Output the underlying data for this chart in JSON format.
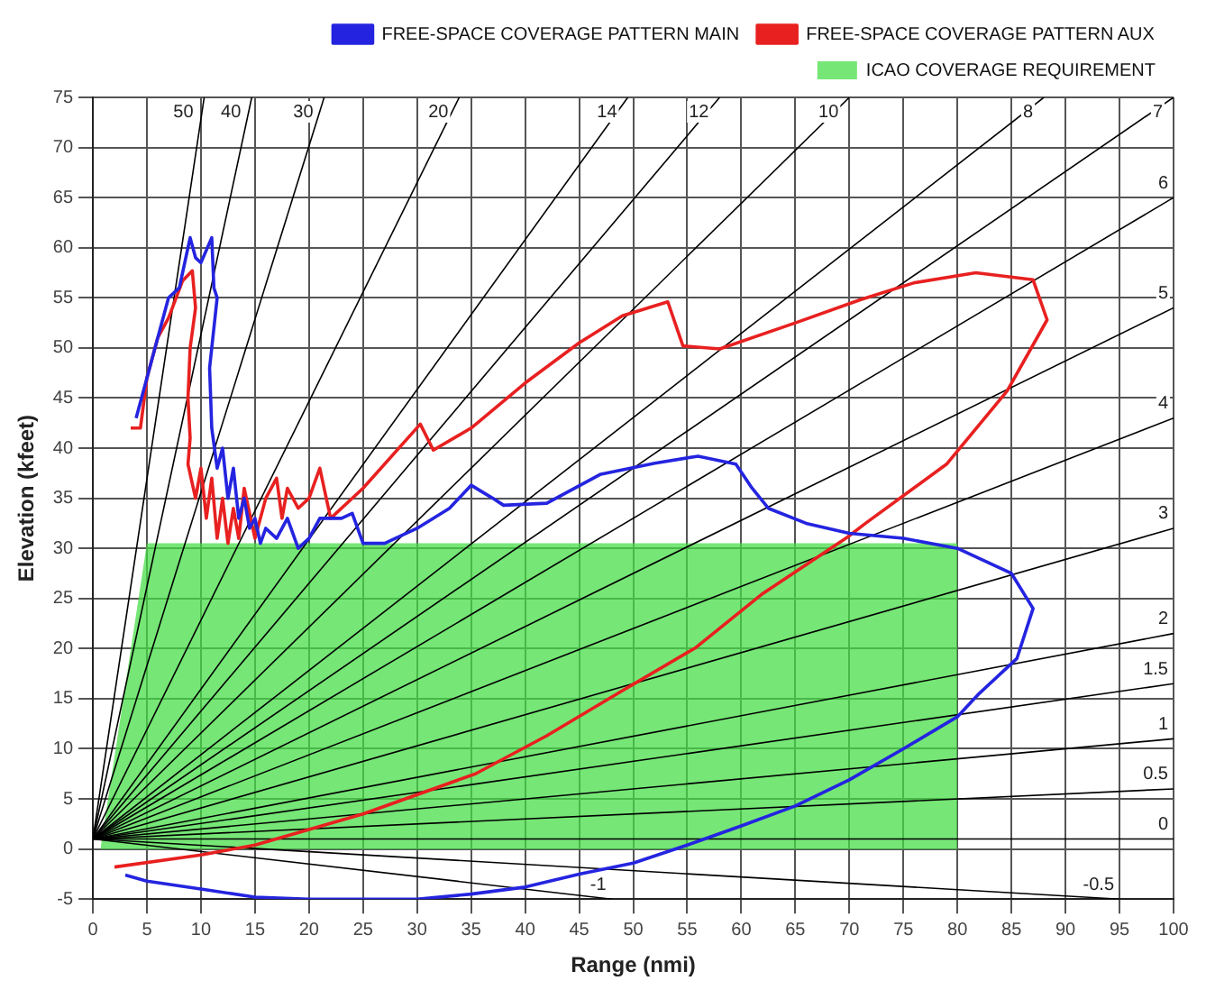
{
  "chart_data": {
    "type": "line",
    "xlabel": "Range (nmi)",
    "ylabel": "Elevation (kfeet)",
    "xlim": [
      0,
      100
    ],
    "xticks": [
      0,
      5,
      10,
      15,
      20,
      25,
      30,
      35,
      40,
      45,
      50,
      55,
      60,
      65,
      70,
      75,
      80,
      85,
      90,
      95,
      100
    ],
    "ylim": [
      -5,
      75
    ],
    "yticks": [
      -5,
      0,
      5,
      10,
      15,
      20,
      25,
      30,
      35,
      40,
      45,
      50,
      55,
      60,
      65,
      70,
      75
    ],
    "grid": true,
    "legend": "top right",
    "marker": "none",
    "line_style": "solid",
    "series": [
      {
        "name": "ICAO COVERAGE REQUIREMENT",
        "type": "area",
        "color": "#44dd44",
        "x": [
          0.7,
          5,
          80,
          80
        ],
        "values": [
          0,
          30.5,
          30.5,
          0
        ]
      },
      {
        "name": "FREE-SPACE COVERAGE PATTERN MAIN",
        "color": "#2424e0",
        "x": [
          4,
          5,
          6,
          7,
          8,
          9,
          9.5,
          10,
          11,
          11.2,
          11.5,
          10.8,
          11,
          11.5,
          12,
          12.5,
          13,
          13.5,
          14,
          14.5,
          15,
          15.5,
          16,
          17,
          18,
          19,
          20,
          21,
          23,
          24,
          25,
          27,
          30,
          33,
          35,
          37,
          38,
          42,
          47,
          52,
          56,
          59.5,
          61,
          62.5,
          66,
          70,
          75,
          80,
          85,
          87,
          85.5,
          82,
          80,
          75,
          70,
          65,
          60,
          55,
          50,
          45,
          40,
          35,
          30,
          25,
          20,
          15,
          10,
          5,
          3
        ],
        "values": [
          43,
          47,
          51,
          55,
          56,
          61,
          59,
          58.5,
          61,
          56,
          55,
          48,
          42,
          38,
          40,
          35,
          38,
          33,
          35,
          32,
          33,
          30.5,
          32,
          31,
          33,
          30,
          31,
          33,
          33,
          33.5,
          30.5,
          30.5,
          32,
          34,
          36.3,
          35,
          34.3,
          34.5,
          37.4,
          38.5,
          39.2,
          38.4,
          36,
          34,
          32.5,
          31.5,
          31,
          30,
          27.5,
          24,
          19,
          15.5,
          13.2,
          10,
          6.9,
          4.3,
          2.3,
          0.4,
          -1.4,
          -2.5,
          -3.8,
          -4.5,
          -5,
          -5,
          -5,
          -4.8,
          -4,
          -3.2,
          -2.6
        ]
      },
      {
        "name": "FREE-SPACE COVERAGE PATTERN AUX",
        "color": "#e82020",
        "x": [
          3.5,
          4.4,
          5,
          6,
          7,
          8.3,
          9.2,
          9.5,
          9,
          8.8,
          9,
          8.8,
          9.5,
          10,
          10.5,
          11,
          11.5,
          12,
          12.5,
          13,
          13.5,
          14,
          15,
          16,
          17,
          17.5,
          18,
          19,
          20,
          21,
          22,
          25,
          30.3,
          31.5,
          35,
          40,
          45,
          49,
          53.2,
          54.6,
          58,
          65,
          71,
          76,
          81.7,
          87,
          88.3,
          84.6,
          79,
          71.5,
          69.8,
          62,
          55.8,
          49,
          42,
          35.4,
          25,
          15,
          10,
          2
        ],
        "values": [
          42,
          42,
          47,
          51,
          53,
          56.7,
          57.7,
          54,
          50,
          45,
          41,
          38.4,
          35,
          38,
          33,
          37,
          31,
          35,
          30.5,
          34,
          31,
          36,
          31,
          35,
          37,
          33,
          36,
          34,
          35,
          38,
          33,
          36,
          42.4,
          39.8,
          42,
          46.5,
          50.5,
          53.2,
          54.6,
          50.2,
          49.9,
          52.5,
          54.8,
          56.5,
          57.5,
          56.8,
          52.8,
          45.7,
          38.4,
          32.5,
          31.1,
          25.5,
          20.1,
          15.8,
          11.3,
          7.5,
          3.5,
          0.4,
          -0.6,
          -1.8
        ]
      },
      {
        "name": "50",
        "type": "line",
        "color": "#000000",
        "x": [
          0,
          10.3
        ],
        "values": [
          1,
          75
        ]
      },
      {
        "name": "40",
        "type": "line",
        "color": "#000000",
        "x": [
          0,
          14.7
        ],
        "values": [
          1,
          75
        ]
      },
      {
        "name": "30",
        "type": "line",
        "color": "#000000",
        "x": [
          0,
          21.4
        ],
        "values": [
          1,
          75
        ]
      },
      {
        "name": "20",
        "type": "line",
        "color": "#000000",
        "x": [
          0,
          33.9
        ],
        "values": [
          1,
          75
        ]
      },
      {
        "name": "14",
        "type": "line",
        "color": "#000000",
        "x": [
          0,
          49.5
        ],
        "values": [
          1,
          75
        ]
      },
      {
        "name": "12",
        "type": "line",
        "color": "#000000",
        "x": [
          0,
          58
        ],
        "values": [
          1,
          75
        ]
      },
      {
        "name": "10",
        "type": "line",
        "color": "#000000",
        "x": [
          0,
          70
        ],
        "values": [
          1,
          75
        ]
      },
      {
        "name": "8",
        "type": "line",
        "color": "#000000",
        "x": [
          0,
          88
        ],
        "values": [
          1,
          75
        ]
      },
      {
        "name": "7",
        "type": "line",
        "color": "#000000",
        "x": [
          0,
          100
        ],
        "values": [
          1,
          75
        ]
      },
      {
        "name": "6",
        "type": "line",
        "color": "#000000",
        "x": [
          0,
          100
        ],
        "values": [
          1,
          65
        ]
      },
      {
        "name": "5",
        "type": "line",
        "color": "#000000",
        "x": [
          0,
          100
        ],
        "values": [
          1,
          54
        ]
      },
      {
        "name": "4",
        "type": "line",
        "color": "#000000",
        "x": [
          0,
          100
        ],
        "values": [
          1,
          43
        ]
      },
      {
        "name": "3",
        "type": "line",
        "color": "#000000",
        "x": [
          0,
          100
        ],
        "values": [
          1,
          32
        ]
      },
      {
        "name": "2",
        "type": "line",
        "color": "#000000",
        "x": [
          0,
          100
        ],
        "values": [
          1,
          21.5
        ]
      },
      {
        "name": "1.5",
        "type": "line",
        "color": "#000000",
        "x": [
          0,
          100
        ],
        "values": [
          1,
          16.5
        ]
      },
      {
        "name": "1",
        "type": "line",
        "color": "#000000",
        "x": [
          0,
          100
        ],
        "values": [
          1,
          11
        ]
      },
      {
        "name": "0.5",
        "type": "line",
        "color": "#000000",
        "x": [
          0,
          100
        ],
        "values": [
          1,
          6
        ]
      },
      {
        "name": "0",
        "type": "line",
        "color": "#000000",
        "x": [
          0,
          100
        ],
        "values": [
          1,
          1
        ]
      },
      {
        "name": "-0.5",
        "type": "line",
        "color": "#000000",
        "x": [
          0,
          95
        ],
        "values": [
          1,
          -5
        ]
      },
      {
        "name": "-1",
        "type": "line",
        "color": "#000000",
        "x": [
          0,
          48
        ],
        "values": [
          1,
          -5
        ]
      }
    ]
  }
}
